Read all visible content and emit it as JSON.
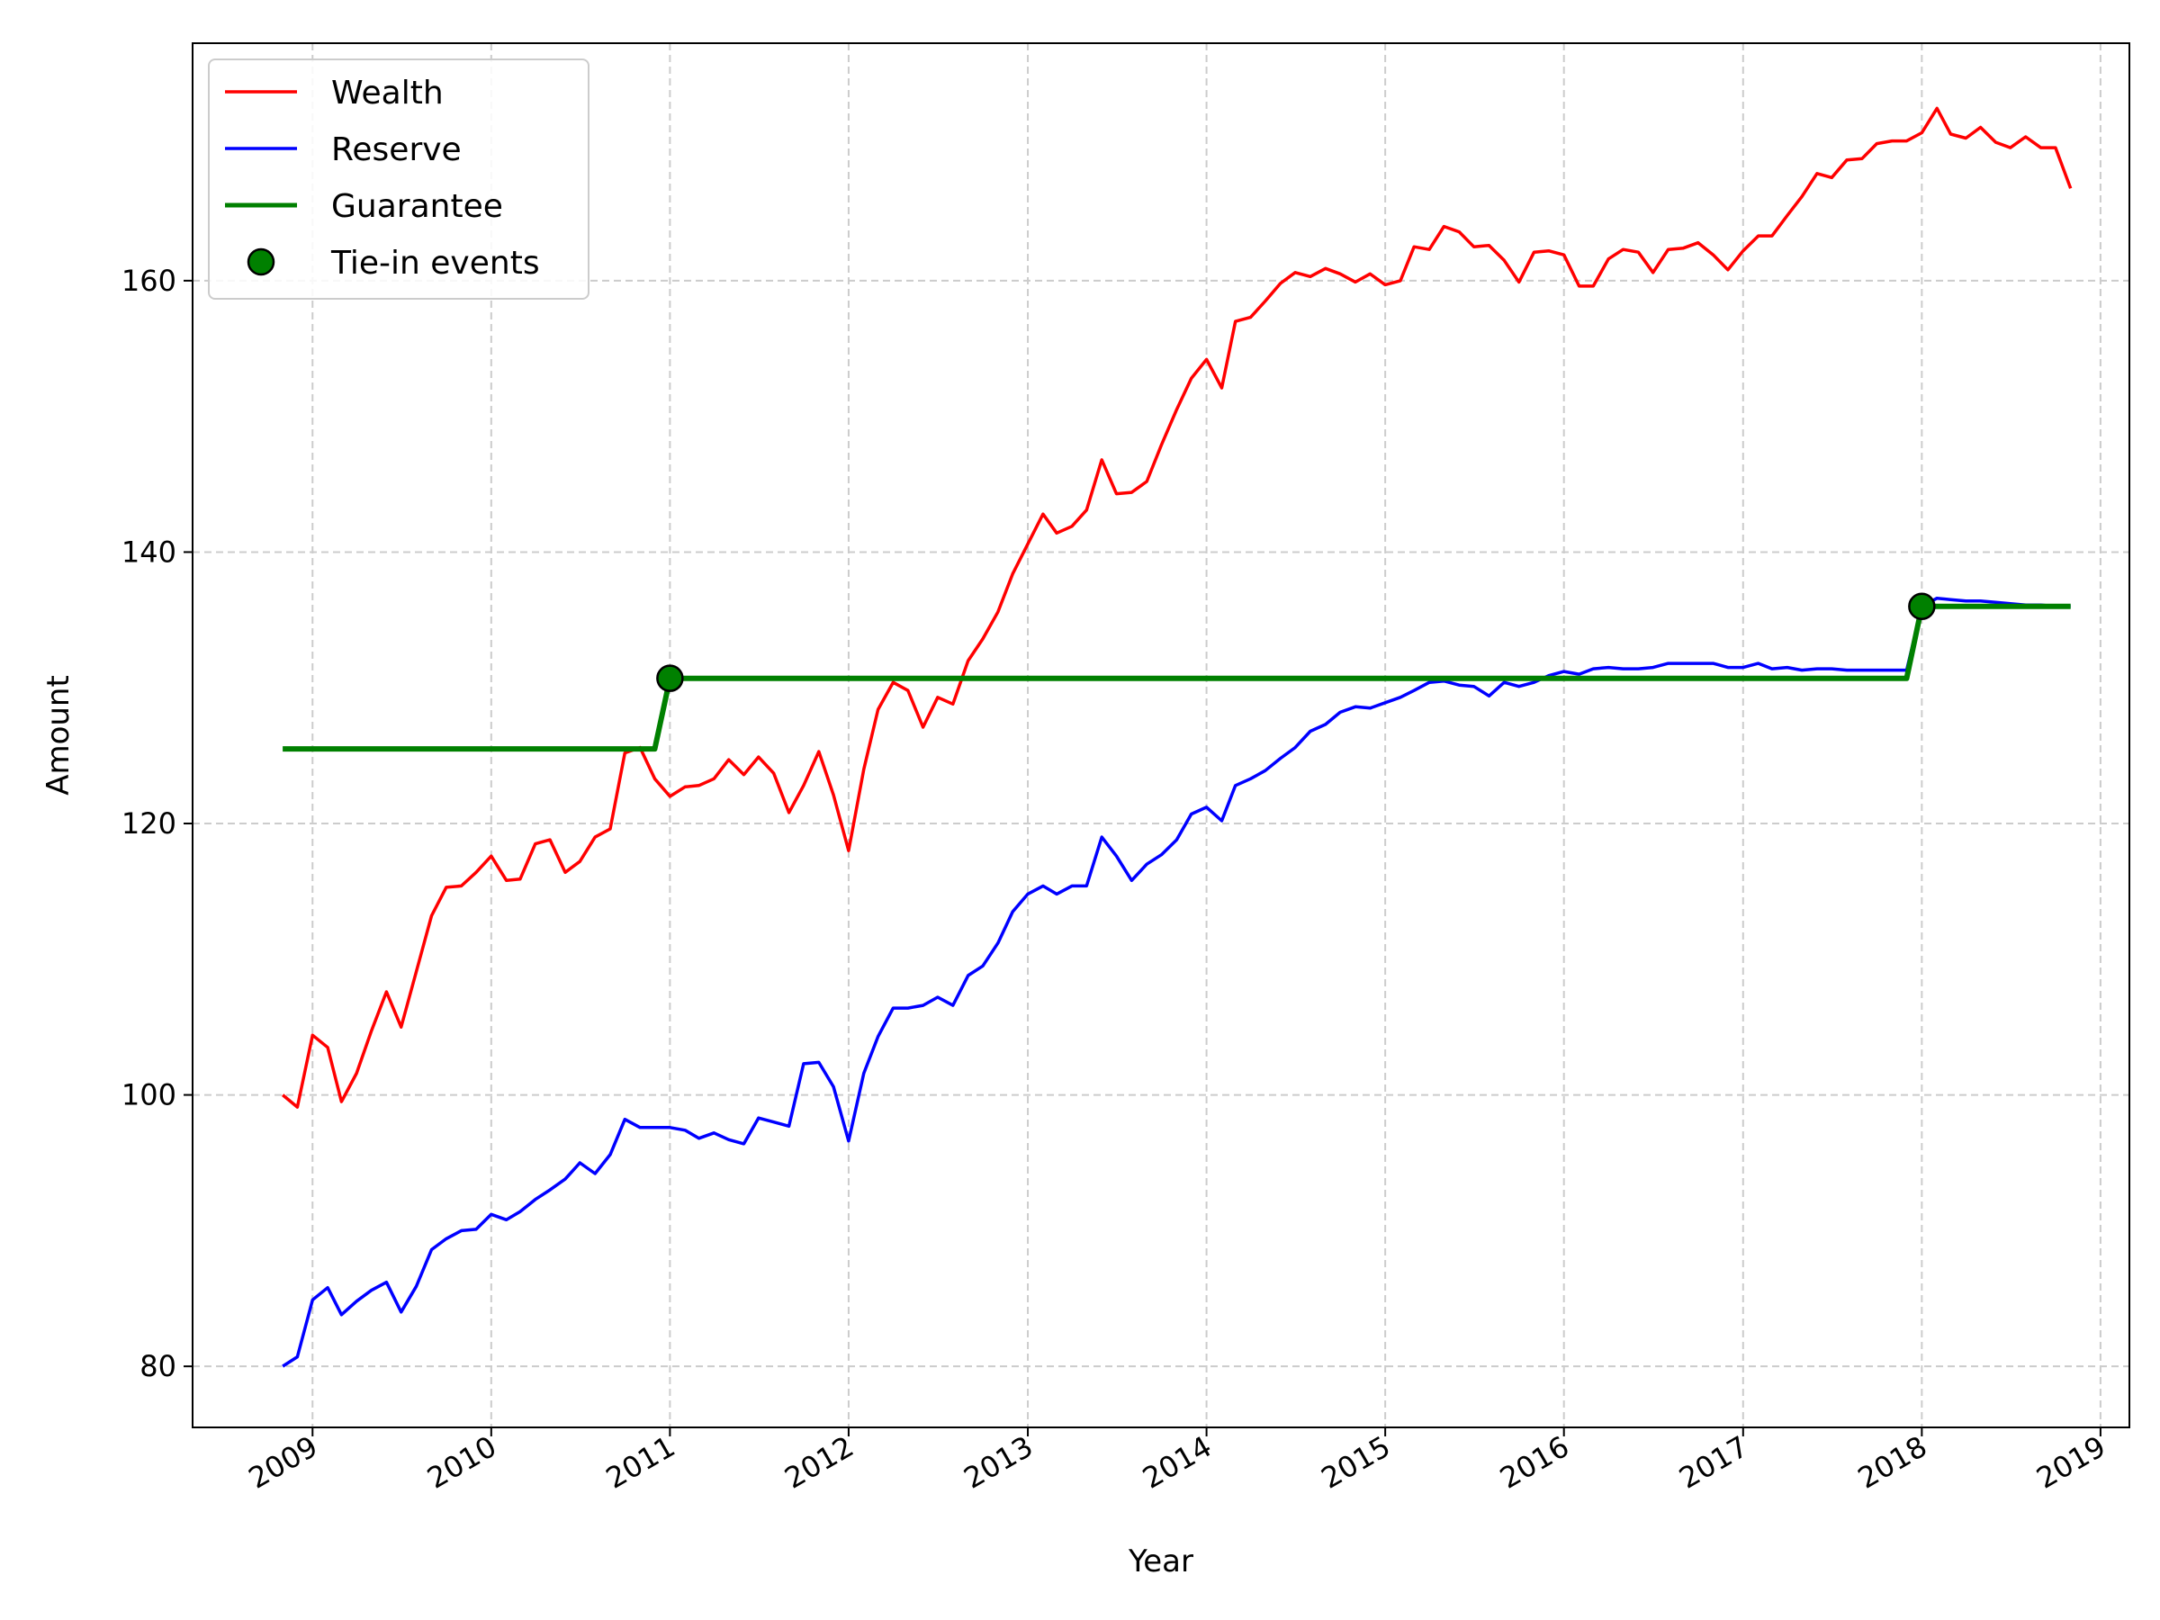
{
  "chart_data": {
    "type": "line",
    "title": "",
    "xlabel": "Year",
    "ylabel": "Amount",
    "x_type": "date",
    "xlim": [
      "2008-05-01",
      "2019-03-01"
    ],
    "ylim": [
      75.5,
      177.5
    ],
    "x_ticks": [
      {
        "date": "2009-01-01",
        "label": "2009"
      },
      {
        "date": "2010-01-01",
        "label": "2010"
      },
      {
        "date": "2011-01-01",
        "label": "2011"
      },
      {
        "date": "2012-01-01",
        "label": "2012"
      },
      {
        "date": "2013-01-01",
        "label": "2013"
      },
      {
        "date": "2014-01-01",
        "label": "2014"
      },
      {
        "date": "2015-01-01",
        "label": "2015"
      },
      {
        "date": "2016-01-01",
        "label": "2016"
      },
      {
        "date": "2017-01-01",
        "label": "2017"
      },
      {
        "date": "2018-01-01",
        "label": "2018"
      },
      {
        "date": "2019-01-01",
        "label": "2019"
      }
    ],
    "y_ticks": [
      80,
      100,
      120,
      140,
      160
    ],
    "grid": true,
    "legend_position": "upper-left",
    "start_month": "2008-11",
    "series": [
      {
        "name": "Wealth",
        "color": "#ff0000",
        "values": [
          100.0,
          99.1,
          104.4,
          103.5,
          99.5,
          101.6,
          104.7,
          107.6,
          105.0,
          109.1,
          113.2,
          115.3,
          115.4,
          116.4,
          117.6,
          115.8,
          115.9,
          118.5,
          118.8,
          116.4,
          117.2,
          119.0,
          119.6,
          125.2,
          125.6,
          123.3,
          122.0,
          122.7,
          122.8,
          123.3,
          124.7,
          123.6,
          124.9,
          123.7,
          120.8,
          122.8,
          125.3,
          122.1,
          118.0,
          124.0,
          128.4,
          130.4,
          129.8,
          127.1,
          129.3,
          128.8,
          132.0,
          133.6,
          135.6,
          138.4,
          140.6,
          142.8,
          141.4,
          141.9,
          143.1,
          146.8,
          144.3,
          144.4,
          145.2,
          147.9,
          150.5,
          152.8,
          154.2,
          152.1,
          157.0,
          157.3,
          158.5,
          159.8,
          160.6,
          160.3,
          160.9,
          160.5,
          159.9,
          160.5,
          159.7,
          160.0,
          162.5,
          162.3,
          164.0,
          163.6,
          162.5,
          162.6,
          161.5,
          159.9,
          162.1,
          162.2,
          161.9,
          159.6,
          159.6,
          161.6,
          162.3,
          162.1,
          160.6,
          162.3,
          162.4,
          162.8,
          161.9,
          160.8,
          162.2,
          163.3,
          163.3,
          164.8,
          166.2,
          167.9,
          167.6,
          168.9,
          169.0,
          170.1,
          170.3,
          170.3,
          170.9,
          172.7,
          170.8,
          170.5,
          171.3,
          170.2,
          169.8,
          170.6,
          169.8,
          169.8,
          166.8
        ]
      },
      {
        "name": "Reserve",
        "color": "#0000ff",
        "values": [
          80.0,
          80.7,
          84.9,
          85.8,
          83.8,
          84.8,
          85.6,
          86.2,
          84.0,
          85.9,
          88.6,
          89.4,
          90.0,
          90.1,
          91.2,
          90.8,
          91.4,
          92.3,
          93.0,
          93.8,
          95.0,
          94.2,
          95.6,
          98.2,
          97.6,
          97.6,
          97.6,
          97.4,
          96.8,
          97.2,
          96.7,
          96.4,
          98.3,
          98.0,
          97.7,
          102.3,
          102.4,
          100.6,
          96.6,
          101.6,
          104.3,
          106.4,
          106.4,
          106.6,
          107.2,
          106.6,
          108.8,
          109.5,
          111.2,
          113.5,
          114.8,
          115.4,
          114.8,
          115.4,
          115.4,
          119.0,
          117.6,
          115.8,
          117.0,
          117.7,
          118.8,
          120.7,
          121.2,
          120.2,
          122.8,
          123.3,
          123.9,
          124.8,
          125.6,
          126.8,
          127.3,
          128.2,
          128.6,
          128.5,
          128.9,
          129.3,
          129.8,
          130.4,
          130.5,
          130.2,
          130.1,
          129.4,
          130.4,
          130.1,
          130.4,
          130.9,
          131.2,
          131.0,
          131.4,
          131.5,
          131.4,
          131.4,
          131.5,
          131.8,
          131.8,
          131.8,
          131.8,
          131.5,
          131.5,
          131.8,
          131.4,
          131.5,
          131.3,
          131.4,
          131.4,
          131.3,
          131.3,
          131.3,
          131.3,
          131.3,
          136.0,
          136.6,
          136.5,
          136.4,
          136.4,
          136.3,
          136.2,
          136.1,
          136.1,
          136.0,
          136.0
        ]
      },
      {
        "name": "Guarantee",
        "color": "#008000",
        "step_points": [
          {
            "x": "2008-11-01",
            "y": 125.5
          },
          {
            "x": "2010-12-01",
            "y": 125.5
          },
          {
            "x": "2011-01-01",
            "y": 130.7
          },
          {
            "x": "2017-12-01",
            "y": 130.7
          },
          {
            "x": "2018-01-01",
            "y": 136.0
          },
          {
            "x": "2018-11-01",
            "y": 136.0
          }
        ]
      }
    ],
    "markers": {
      "name": "Tie-in events",
      "color": "#008000",
      "edgecolor": "#000000",
      "points": [
        {
          "x": "2011-01-01",
          "y": 130.7
        },
        {
          "x": "2018-01-01",
          "y": 136.0
        }
      ]
    }
  }
}
